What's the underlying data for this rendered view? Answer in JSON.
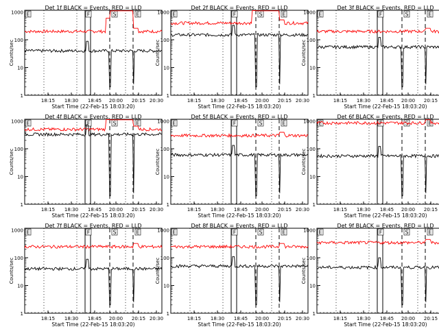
{
  "chart_data": {
    "type": "line",
    "ylabel": "Counts/sec",
    "xlabel": "Start Time (22-Feb-15 18:03:20)",
    "x_tick_labels": [
      "18:15",
      "18:30",
      "18:45",
      "20:00",
      "20:15",
      "20:30"
    ],
    "y_tick_labels": [
      "1",
      "10",
      "100",
      "1000"
    ],
    "yscale": "log",
    "ylim": [
      1,
      1000
    ],
    "series_colors": {
      "events": "#000000",
      "lld": "#ff0000"
    },
    "marker_labels": [
      "E",
      "F",
      "S",
      "E"
    ],
    "panels": [
      {
        "title": "Det 1f BLACK = Events, RED = LLD",
        "lld_level": 200,
        "events_level": 40,
        "lld_rises_high": true
      },
      {
        "title": "Det 2f BLACK = Events, RED = LLD",
        "lld_level": 400,
        "events_level": 150,
        "lld_rises_high": true
      },
      {
        "title": "Det 3f BLACK = Events, RED = LLD",
        "lld_level": 200,
        "events_level": 55,
        "lld_rises_high": false
      },
      {
        "title": "Det 4f BLACK = Events, RED = LLD",
        "lld_level": 500,
        "events_level": 330,
        "lld_rises_high": true
      },
      {
        "title": "Det 5f BLACK = Events, RED = LLD",
        "lld_level": 300,
        "events_level": 60,
        "lld_rises_high": false
      },
      {
        "title": "Det 6f BLACK = Events, RED = LLD",
        "lld_level": 850,
        "events_level": 55,
        "lld_rises_high": false
      },
      {
        "title": "Det 7f BLACK = Events, RED = LLD",
        "lld_level": 250,
        "events_level": 40,
        "lld_rises_high": false
      },
      {
        "title": "Det 8f BLACK = Events, RED = LLD",
        "lld_level": 250,
        "events_level": 50,
        "lld_rises_high": false
      },
      {
        "title": "Det 9f BLACK = Events, RED = LLD",
        "lld_level": 350,
        "events_level": 45,
        "lld_rises_high": false
      }
    ]
  }
}
